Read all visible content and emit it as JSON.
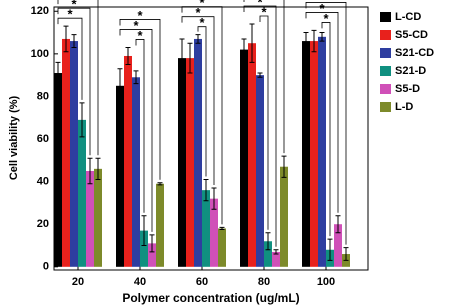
{
  "chart_data": {
    "type": "bar",
    "x_label": "Polymer concentration (ug/mL)",
    "y_label": "Cell viability (%)",
    "categories": [
      "20",
      "40",
      "60",
      "80",
      "100"
    ],
    "series": [
      {
        "name": "L-CD",
        "color": "#000000",
        "values": [
          91,
          85,
          98,
          102,
          106
        ],
        "errors": [
          5,
          8,
          9,
          5,
          4
        ]
      },
      {
        "name": "S5-CD",
        "color": "#e8211c",
        "values": [
          107,
          99,
          98,
          105,
          106
        ],
        "errors": [
          6,
          4,
          7,
          9,
          5
        ]
      },
      {
        "name": "S21-CD",
        "color": "#2e3ea0",
        "values": [
          106,
          89,
          107,
          90,
          108
        ],
        "errors": [
          3,
          3,
          2,
          1,
          2
        ]
      },
      {
        "name": "S21-D",
        "color": "#109080",
        "values": [
          69,
          17,
          36,
          12,
          8
        ],
        "errors": [
          8,
          7,
          5,
          4,
          5
        ]
      },
      {
        "name": "S5-D",
        "color": "#d050b8",
        "values": [
          45,
          11,
          32,
          7,
          20
        ],
        "errors": [
          6,
          4,
          5,
          1,
          4
        ]
      },
      {
        "name": "L-D",
        "color": "#7d8a2a",
        "values": [
          46,
          39,
          18,
          47,
          6
        ],
        "errors": [
          5,
          0.5,
          0.5,
          5,
          3
        ]
      }
    ],
    "significance_label": "*",
    "ylim": [
      -1.5,
      122
    ],
    "yticks": [
      0,
      20,
      40,
      60,
      80,
      100,
      120
    ],
    "grid": false,
    "legend": "right"
  }
}
